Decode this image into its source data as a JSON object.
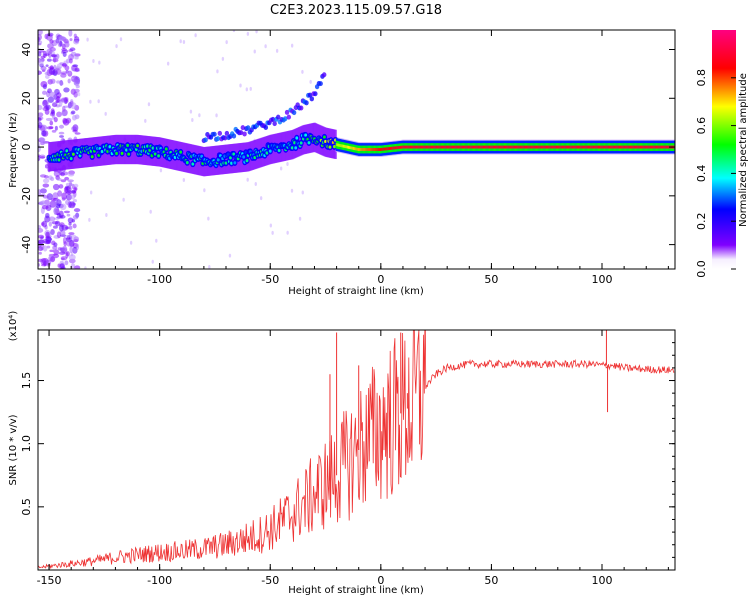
{
  "figure": {
    "title": "C2E3.2023.115.09.57.G18"
  },
  "chart_data": [
    {
      "type": "heatmap",
      "xlabel": "Height of straight line (km)",
      "ylabel": "Frequency (Hz)",
      "xlim": [
        -155,
        133
      ],
      "ylim": [
        -50,
        48
      ],
      "xticks": [
        -150,
        -100,
        -50,
        0,
        50,
        100
      ],
      "yticks": [
        -40,
        -20,
        0,
        20,
        40
      ],
      "grid": false,
      "colorbar": {
        "label": "Normalized spectral amplitude",
        "range": [
          0,
          1
        ],
        "ticks": [
          0.0,
          0.2,
          0.4,
          0.6,
          0.8
        ],
        "colors": [
          "#ffffff",
          "#8000ff",
          "#0000ff",
          "#00ffff",
          "#00ff00",
          "#ffff00",
          "#ff0000",
          "#ff0080"
        ]
      },
      "ridge": {
        "x": [
          -150,
          -140,
          -130,
          -120,
          -110,
          -100,
          -90,
          -80,
          -70,
          -60,
          -50,
          -40,
          -35,
          -30,
          -25,
          -20,
          -15,
          -10,
          -5,
          0,
          10,
          50,
          95,
          100,
          133
        ],
        "freq": [
          -4,
          -3,
          -2,
          -1,
          -1,
          -2,
          -4,
          -6,
          -5,
          -4,
          -1,
          1,
          3,
          4,
          2,
          1,
          0,
          -1,
          -1,
          -1,
          0,
          0,
          0,
          0,
          0
        ],
        "amplitude": [
          0.45,
          0.5,
          0.5,
          0.5,
          0.5,
          0.45,
          0.45,
          0.45,
          0.4,
          0.4,
          0.4,
          0.45,
          0.5,
          0.55,
          0.6,
          0.65,
          0.7,
          0.75,
          0.8,
          0.85,
          0.9,
          0.9,
          0.9,
          0.9,
          0.9
        ]
      },
      "upper_branch": {
        "x": [
          -80,
          -70,
          -60,
          -50,
          -40,
          -35,
          -30,
          -25
        ],
        "freq": [
          4,
          5,
          7,
          10,
          14,
          18,
          22,
          30
        ]
      }
    },
    {
      "type": "line",
      "xlabel": "Height of straight line (km)",
      "ylabel": "SNR (10 * v/v)",
      "y_scale_label": "(x10⁴)",
      "xlim": [
        -155,
        133
      ],
      "ylim": [
        0,
        1.9
      ],
      "xticks": [
        -150,
        -100,
        -50,
        0,
        50,
        100
      ],
      "yticks": [
        0.5,
        1.0,
        1.5
      ],
      "color": "#ee3333",
      "series": [
        {
          "x": [
            -155,
            -150,
            -140,
            -130,
            -120,
            -110,
            -100,
            -90,
            -80,
            -70,
            -60,
            -55,
            -50,
            -45,
            -40,
            -35,
            -30,
            -25,
            -20,
            -15,
            -10,
            -5,
            0,
            5,
            10,
            15,
            20,
            25,
            30,
            40,
            50,
            60,
            70,
            80,
            90,
            95,
            100,
            105,
            110,
            120,
            133
          ],
          "values": [
            0.02,
            0.03,
            0.05,
            0.07,
            0.1,
            0.12,
            0.14,
            0.15,
            0.17,
            0.2,
            0.25,
            0.28,
            0.32,
            0.38,
            0.45,
            0.52,
            0.6,
            0.68,
            0.75,
            0.85,
            0.95,
            1.05,
            1.12,
            1.2,
            1.25,
            1.32,
            1.45,
            1.55,
            1.6,
            1.63,
            1.63,
            1.63,
            1.63,
            1.63,
            1.63,
            1.63,
            1.62,
            1.62,
            1.6,
            1.59,
            1.58
          ]
        }
      ],
      "spikes": [
        {
          "x": -20,
          "value": 1.88
        },
        {
          "x": -23,
          "value": 1.55
        },
        {
          "x": -10,
          "value": 1.62
        },
        {
          "x": 9,
          "value": 1.88
        },
        {
          "x": 12,
          "value": 1.4
        },
        {
          "x": 102,
          "value": 1.9
        },
        {
          "x": 102.5,
          "value": 1.25
        }
      ]
    }
  ]
}
